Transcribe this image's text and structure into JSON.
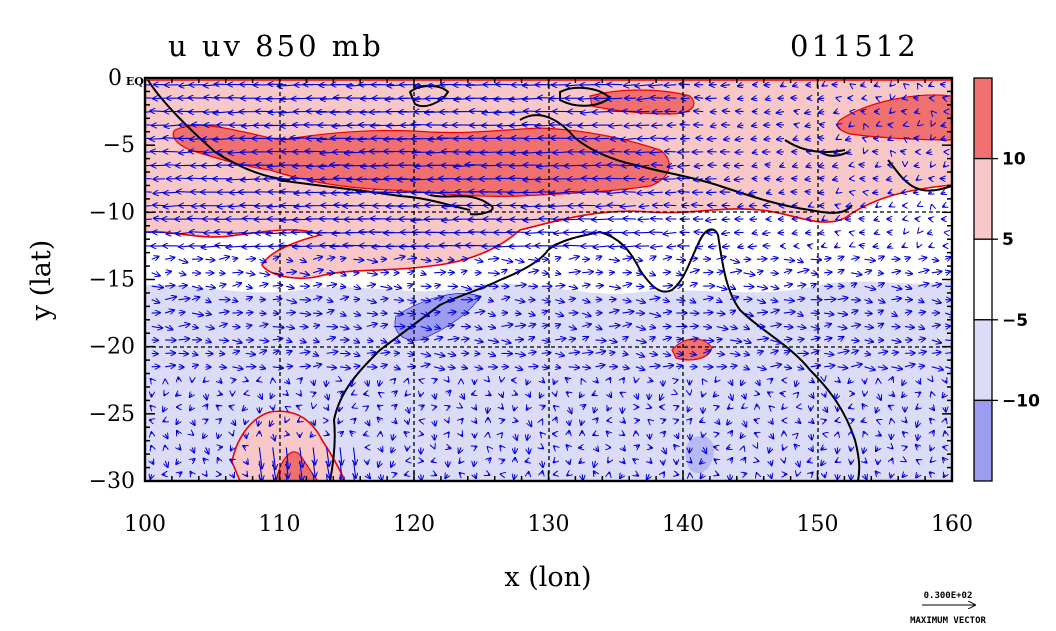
{
  "chart_data": {
    "type": "heatmap",
    "title": "u uv 850 mb",
    "title_right": "011512",
    "xlabel": "x (lon)",
    "ylabel": "y (lat)",
    "xlim": [
      100,
      160
    ],
    "ylim": [
      -30,
      0
    ],
    "x_ticks": [
      "100",
      "110",
      "120",
      "130",
      "140",
      "150",
      "160"
    ],
    "y_ticks": [
      "0 EQ",
      "−5",
      "−10",
      "−15",
      "−20",
      "−25",
      "−30"
    ],
    "colorbar": {
      "levels": [
        "10",
        "5",
        "−5",
        "−10"
      ],
      "colors": [
        "#f07070",
        "#f8c8c8",
        "#ffffff",
        "#dcdcf8",
        "#9c9cf0"
      ]
    },
    "shaded_regions": [
      {
        "label": "u > 10",
        "approx_extent_lon": [
          103,
          153
        ],
        "approx_extent_lat": [
          -8,
          -2
        ]
      },
      {
        "label": "u > 5",
        "approx_extent_lon": [
          100,
          160
        ],
        "approx_extent_lat": [
          -15,
          0
        ]
      },
      {
        "label": "u < -5",
        "approx_extent_lon": [
          100,
          160
        ],
        "approx_extent_lat": [
          -30,
          -15
        ]
      },
      {
        "label": "u < -10",
        "approx_extent_lon": [
          119,
          125
        ],
        "approx_extent_lat": [
          -20,
          -17
        ]
      }
    ],
    "grid": true,
    "vector_reference": {
      "value": "0.300E+02",
      "label": "MAXIMUM VECTOR"
    },
    "colors": {
      "positive": "#f07070",
      "negative": "#9c9cf0",
      "vectors": "#0000dd",
      "contours": "#ff0000",
      "coastline": "#000000"
    }
  }
}
